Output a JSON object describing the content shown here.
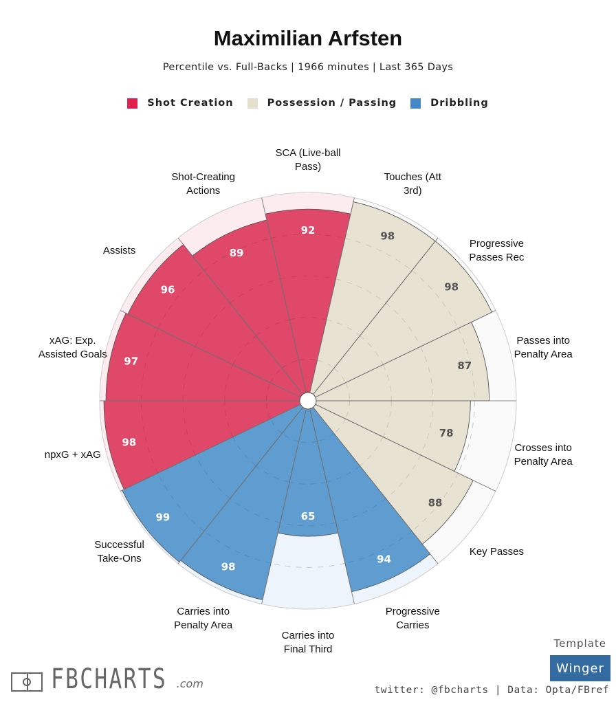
{
  "header": {
    "title": "Maximilian Arfsten",
    "subtitle": "Percentile vs. Full-Backs | 1966 minutes | Last 365 Days"
  },
  "legend": [
    {
      "label": "Shot Creation",
      "color": "#e0214f"
    },
    {
      "label": "Possession / Passing",
      "color": "#e6dfcd"
    },
    {
      "label": "Dribbling",
      "color": "#4488c8"
    }
  ],
  "chart_data": {
    "type": "pie",
    "subtype": "polar-area (pizza) chart",
    "title": "Maximilian Arfsten",
    "subtitle": "Percentile vs. Full-Backs | 1966 minutes | Last 365 Days",
    "value_range": [
      0,
      100
    ],
    "gridlines": [
      20,
      40,
      60,
      80
    ],
    "start": "top, clockwise",
    "groups": {
      "Shot Creation": {
        "fill": "#e0486a",
        "bg": "#fcebef",
        "label_color": "#ffffff"
      },
      "Possession / Passing": {
        "fill": "#e8e2d2",
        "bg": "#fafafa",
        "label_color": "#555555"
      },
      "Dribbling": {
        "fill": "#5f9dd0",
        "bg": "#eef4fb",
        "label_color": "#ffffff"
      }
    },
    "metrics": [
      {
        "label": "SCA (Live-ball\nPass)",
        "value": 92,
        "group": "Shot Creation"
      },
      {
        "label": "Touches (Att\n3rd)",
        "value": 98,
        "group": "Possession / Passing"
      },
      {
        "label": "Progressive\nPasses Rec",
        "value": 98,
        "group": "Possession / Passing"
      },
      {
        "label": "Passes into\nPenalty Area",
        "value": 87,
        "group": "Possession / Passing"
      },
      {
        "label": "Crosses into\nPenalty Area",
        "value": 78,
        "group": "Possession / Passing"
      },
      {
        "label": "Key Passes",
        "value": 88,
        "group": "Possession / Passing"
      },
      {
        "label": "Progressive\nCarries",
        "value": 94,
        "group": "Dribbling"
      },
      {
        "label": "Carries into\nFinal Third",
        "value": 65,
        "group": "Dribbling"
      },
      {
        "label": "Carries into\nPenalty Area",
        "value": 98,
        "group": "Dribbling"
      },
      {
        "label": "Successful\nTake-Ons",
        "value": 99,
        "group": "Dribbling"
      },
      {
        "label": "npxG + xAG",
        "value": 98,
        "group": "Shot Creation"
      },
      {
        "label": "xAG: Exp.\nAssisted Goals",
        "value": 97,
        "group": "Shot Creation"
      },
      {
        "label": "Assists",
        "value": 96,
        "group": "Shot Creation"
      },
      {
        "label": "Shot-Creating\nActions",
        "value": 89,
        "group": "Shot Creation"
      }
    ]
  },
  "footer": {
    "template_label": "Template",
    "template_value": "Winger",
    "credit": "twitter: @fbcharts | Data: Opta/FBref",
    "brand_name": "FBCHARTS",
    "brand_tld": ".com"
  }
}
